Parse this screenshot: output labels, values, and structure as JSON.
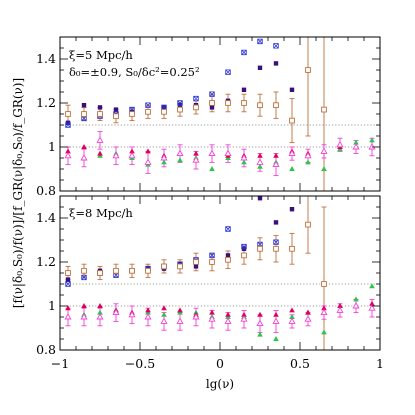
{
  "chart_data": {
    "type": "scatter",
    "xlabel": "lg(ν)",
    "ylabel": "[f(ν|δ₀,S₀)/f(ν)]/[f_GR(ν|δ₀,S₀)/f_GR(ν)]",
    "xlim": [
      -1,
      1
    ],
    "xticks": [
      "−1",
      "−0.5",
      "0",
      "0.5",
      "1"
    ],
    "colors": {
      "purple_square": "#3b0f7a",
      "blue_cross": "#2a35d8",
      "brown_open_square": "#c0703a",
      "green_triangle": "#2fc44a",
      "red_triangle": "#e0005a",
      "magenta_triangle": "#f040d8",
      "reference_line": "#9a9a9a"
    },
    "reference_lines": [
      1.0,
      1.1
    ],
    "panels": [
      {
        "id": "top",
        "ylim": [
          0.8,
          1.5
        ],
        "yticks": [
          "0.8",
          "1",
          "1.2",
          "1.4"
        ],
        "annotation_line1": "ξ=5 Mpc/h",
        "annotation_line2": "δ₀=±0.9,  S₀/δc²=0.25²",
        "series": [
          {
            "marker": "filled-square",
            "color": "purple_square",
            "x": [
              -0.95,
              -0.85,
              -0.75,
              -0.65,
              -0.55,
              -0.45,
              -0.35,
              -0.25,
              -0.15,
              -0.05,
              0.05,
              0.15,
              0.25,
              0.35,
              0.45
            ],
            "y": [
              1.11,
              1.19,
              1.18,
              1.17,
              1.16,
              1.16,
              1.18,
              1.19,
              1.19,
              1.18,
              1.21,
              1.26,
              1.36,
              1.38,
              1.26
            ]
          },
          {
            "marker": "cross-square",
            "color": "blue_cross",
            "x": [
              -0.95,
              -0.85,
              -0.75,
              -0.65,
              -0.55,
              -0.45,
              -0.35,
              -0.25,
              -0.15,
              -0.05,
              0.05,
              0.15,
              0.25,
              0.35
            ],
            "y": [
              1.1,
              1.13,
              1.14,
              1.15,
              1.17,
              1.19,
              1.18,
              1.2,
              1.22,
              1.24,
              1.34,
              1.43,
              1.48,
              1.46
            ]
          },
          {
            "marker": "open-square",
            "color": "brown_open_square",
            "x": [
              -0.95,
              -0.85,
              -0.75,
              -0.65,
              -0.55,
              -0.45,
              -0.35,
              -0.25,
              -0.15,
              -0.05,
              0.05,
              0.15,
              0.25,
              0.35,
              0.45,
              0.55,
              0.65
            ],
            "y": [
              1.15,
              1.15,
              1.15,
              1.14,
              1.15,
              1.16,
              1.16,
              1.17,
              1.18,
              1.2,
              1.2,
              1.2,
              1.19,
              1.19,
              1.12,
              1.35,
              1.17
            ],
            "err": [
              0.04,
              0.03,
              0.03,
              0.03,
              0.03,
              0.03,
              0.03,
              0.03,
              0.03,
              0.04,
              0.04,
              0.04,
              0.05,
              0.06,
              0.1,
              0.3,
              0.45
            ]
          },
          {
            "marker": "triangle",
            "color": "green_triangle",
            "x": [
              -0.95,
              -0.85,
              -0.75,
              -0.65,
              -0.55,
              -0.45,
              -0.35,
              -0.25,
              -0.15,
              -0.05,
              0.05,
              0.15,
              0.25,
              0.35,
              0.45,
              0.55,
              0.65,
              0.75,
              0.85,
              0.95
            ],
            "y": [
              0.96,
              0.95,
              0.96,
              0.97,
              0.95,
              0.92,
              0.93,
              0.94,
              0.95,
              0.9,
              0.95,
              0.93,
              0.91,
              0.93,
              0.9,
              0.93,
              0.9,
              0.99,
              1.02,
              1.03
            ]
          },
          {
            "marker": "triangle",
            "color": "red_triangle",
            "x": [
              -0.95,
              -0.85,
              -0.75,
              -0.65,
              -0.55,
              -0.45,
              -0.35,
              -0.25,
              -0.15,
              -0.05,
              0.05,
              0.15,
              0.25,
              0.35,
              0.45,
              0.55,
              0.65,
              0.75,
              0.85,
              0.95
            ],
            "y": [
              0.98,
              1.0,
              0.97,
              0.96,
              0.98,
              0.98,
              0.96,
              0.97,
              0.97,
              0.97,
              0.96,
              0.96,
              0.96,
              0.96,
              0.98,
              0.97,
              0.98,
              1.0,
              1.0,
              1.0
            ]
          },
          {
            "marker": "open-triangle",
            "color": "magenta_triangle",
            "x": [
              -0.95,
              -0.85,
              -0.75,
              -0.65,
              -0.55,
              -0.45,
              -0.35,
              -0.25,
              -0.15,
              -0.05,
              0.05,
              0.15,
              0.25,
              0.35,
              0.45,
              0.55,
              0.65,
              0.75,
              0.85,
              0.95
            ],
            "y": [
              0.96,
              0.95,
              1.03,
              0.96,
              0.96,
              0.93,
              0.95,
              0.97,
              0.94,
              0.97,
              0.97,
              0.95,
              0.93,
              0.92,
              0.97,
              0.96,
              0.98,
              1.01,
              1.0,
              1.0
            ],
            "err": [
              0.04,
              0.04,
              0.04,
              0.04,
              0.04,
              0.05,
              0.04,
              0.04,
              0.04,
              0.04,
              0.04,
              0.04,
              0.04,
              0.05,
              0.03,
              0.03,
              0.03,
              0.03,
              0.03,
              0.04
            ]
          }
        ]
      },
      {
        "id": "bottom",
        "ylim": [
          0.8,
          1.5
        ],
        "yticks": [
          "0.8",
          "1",
          "1.2",
          "1.4"
        ],
        "annotation_line1": "ξ=8 Mpc/h",
        "annotation_line2": "",
        "series": [
          {
            "marker": "filled-square",
            "color": "purple_square",
            "x": [
              -0.95,
              -0.85,
              -0.75,
              -0.65,
              -0.55,
              -0.45,
              -0.35,
              -0.25,
              -0.15,
              -0.05,
              0.05,
              0.15,
              0.25,
              0.35,
              0.45
            ],
            "y": [
              1.12,
              1.16,
              1.16,
              1.16,
              1.16,
              1.17,
              1.17,
              1.19,
              1.18,
              1.2,
              1.23,
              1.26,
              1.49,
              1.38,
              1.44
            ]
          },
          {
            "marker": "cross-square",
            "color": "blue_cross",
            "x": [
              -0.95,
              -0.85,
              -0.75,
              -0.65,
              -0.55,
              -0.45,
              -0.35,
              -0.25,
              -0.15,
              -0.05,
              0.05,
              0.15,
              0.25,
              0.35
            ],
            "y": [
              1.1,
              1.13,
              1.15,
              1.14,
              1.16,
              1.17,
              1.18,
              1.19,
              1.21,
              1.23,
              1.35,
              1.27,
              1.28,
              1.29
            ]
          },
          {
            "marker": "open-square",
            "color": "brown_open_square",
            "x": [
              -0.95,
              -0.85,
              -0.75,
              -0.65,
              -0.55,
              -0.45,
              -0.35,
              -0.25,
              -0.15,
              -0.05,
              0.05,
              0.15,
              0.25,
              0.35,
              0.45,
              0.55,
              0.65
            ],
            "y": [
              1.15,
              1.16,
              1.15,
              1.16,
              1.16,
              1.16,
              1.18,
              1.18,
              1.2,
              1.2,
              1.21,
              1.23,
              1.26,
              1.26,
              1.26,
              1.37,
              1.1
            ],
            "err": [
              0.03,
              0.03,
              0.03,
              0.03,
              0.03,
              0.03,
              0.03,
              0.03,
              0.04,
              0.04,
              0.04,
              0.04,
              0.05,
              0.06,
              0.07,
              0.13,
              0.35
            ]
          },
          {
            "marker": "triangle",
            "color": "green_triangle",
            "x": [
              -0.95,
              -0.85,
              -0.75,
              -0.65,
              -0.55,
              -0.45,
              -0.35,
              -0.25,
              -0.15,
              -0.05,
              0.05,
              0.15,
              0.25,
              0.35,
              0.45,
              0.55,
              0.65,
              0.75,
              0.85,
              0.95
            ],
            "y": [
              0.95,
              0.96,
              0.97,
              0.98,
              0.96,
              0.97,
              0.96,
              0.97,
              0.97,
              0.95,
              0.95,
              0.95,
              0.87,
              0.85,
              0.95,
              0.97,
              0.88,
              1.0,
              1.03,
              1.09
            ]
          },
          {
            "marker": "triangle",
            "color": "red_triangle",
            "x": [
              -0.95,
              -0.85,
              -0.75,
              -0.65,
              -0.55,
              -0.45,
              -0.35,
              -0.25,
              -0.15,
              -0.05,
              0.05,
              0.15,
              0.25,
              0.35,
              0.45,
              0.55,
              0.65,
              0.75,
              0.85,
              0.95
            ],
            "y": [
              0.99,
              1.0,
              1.0,
              0.98,
              0.97,
              0.98,
              0.99,
              0.98,
              0.96,
              0.97,
              0.96,
              0.96,
              0.96,
              0.96,
              0.98,
              0.97,
              0.99,
              1.0,
              1.0,
              1.01
            ]
          },
          {
            "marker": "open-triangle",
            "color": "magenta_triangle",
            "x": [
              -0.95,
              -0.85,
              -0.75,
              -0.65,
              -0.55,
              -0.45,
              -0.35,
              -0.25,
              -0.15,
              -0.05,
              0.05,
              0.15,
              0.25,
              0.35,
              0.45,
              0.55,
              0.65,
              0.75,
              0.85,
              0.95
            ],
            "y": [
              0.95,
              0.95,
              0.95,
              0.97,
              0.96,
              0.95,
              0.93,
              0.93,
              0.95,
              0.94,
              0.93,
              0.94,
              0.92,
              0.93,
              0.93,
              0.94,
              0.97,
              0.98,
              1.0,
              0.99
            ],
            "err": [
              0.04,
              0.04,
              0.04,
              0.04,
              0.04,
              0.04,
              0.04,
              0.04,
              0.04,
              0.04,
              0.04,
              0.04,
              0.04,
              0.05,
              0.03,
              0.03,
              0.03,
              0.03,
              0.03,
              0.04
            ]
          }
        ]
      }
    ]
  }
}
